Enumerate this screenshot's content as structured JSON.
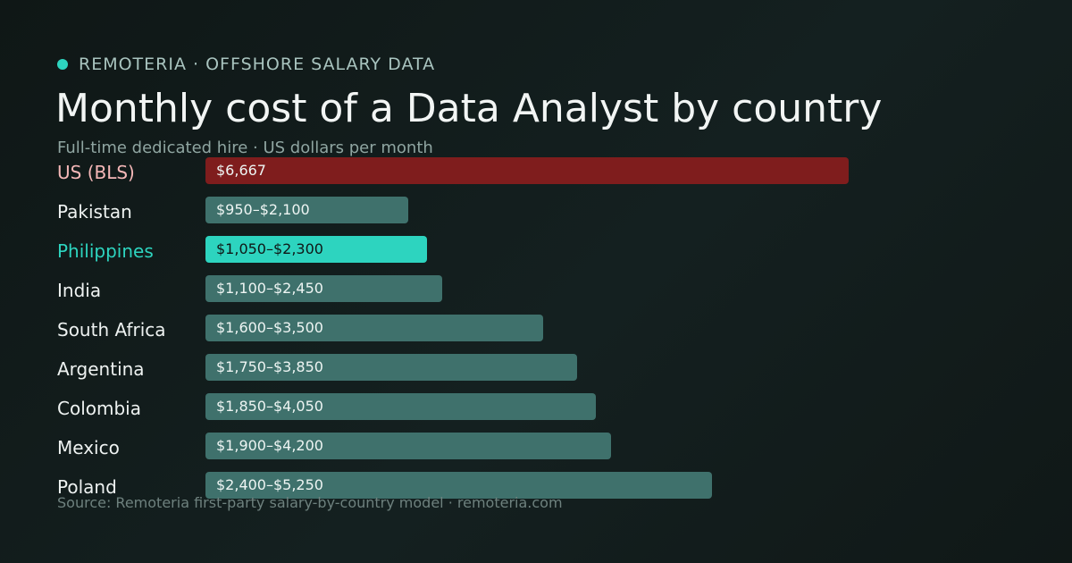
{
  "brand": {
    "text": "REMOTERIA · OFFSHORE SALARY DATA",
    "dot_color": "#2dd4bf"
  },
  "title": "Monthly cost of a Data Analyst by country",
  "subtitle": "Full-time dedicated hire · US dollars per month",
  "source": "Source: Remoteria first-party salary-by-country model · remoteria.com",
  "colors": {
    "us_bar": "#7f1d1d",
    "highlight_bar": "#2dd4bf",
    "default_bar": "#3f716c",
    "background": "#0f1716"
  },
  "chart_data": {
    "type": "bar",
    "orientation": "horizontal",
    "unit": "USD per month",
    "xlim": [
      0,
      6667
    ],
    "categories": [
      "US (BLS)",
      "Pakistan",
      "Philippines",
      "India",
      "South Africa",
      "Argentina",
      "Colombia",
      "Mexico",
      "Poland"
    ],
    "low": [
      6667,
      950,
      1050,
      1100,
      1600,
      1750,
      1850,
      1900,
      2400
    ],
    "high": [
      6667,
      2100,
      2300,
      2450,
      3500,
      3850,
      4050,
      4200,
      5250
    ],
    "value_labels": [
      "$6,667",
      "$950–$2,100",
      "$1,050–$2,300",
      "$1,100–$2,450",
      "$1,600–$3,500",
      "$1,750–$3,850",
      "$1,850–$4,050",
      "$1,900–$4,200",
      "$2,400–$5,250"
    ],
    "styles": [
      "us",
      "default",
      "highlight",
      "default",
      "default",
      "default",
      "default",
      "default",
      "default"
    ],
    "grid": false,
    "legend": "none"
  }
}
